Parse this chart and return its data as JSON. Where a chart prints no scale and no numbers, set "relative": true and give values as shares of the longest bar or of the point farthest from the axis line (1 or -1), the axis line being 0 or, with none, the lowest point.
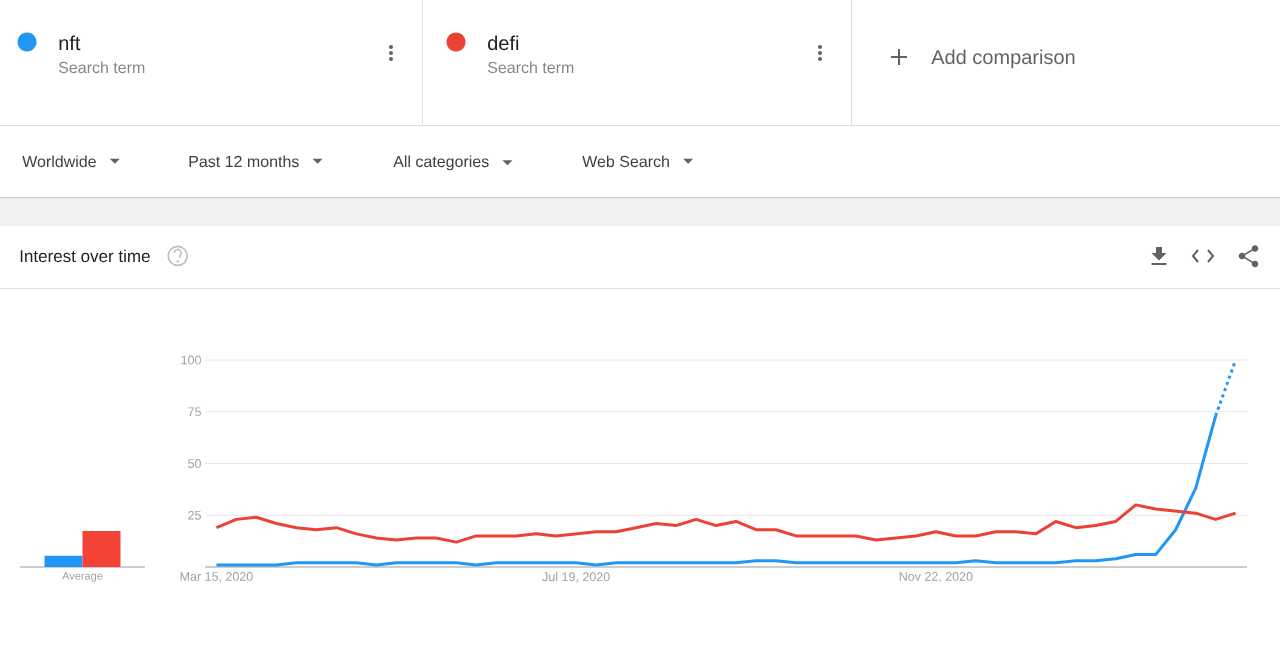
{
  "chart_data": [
    {
      "type": "bar",
      "categories": [
        "Average"
      ],
      "relative": true,
      "series": [
        {
          "color": "#2196f3",
          "values": [
            0.31
          ]
        },
        {
          "color": "#f44336",
          "values": [
            1
          ]
        }
      ]
    },
    {
      "type": "line",
      "title": "Interest over time",
      "x": [
        "2020-03-15",
        "2020-03-22",
        "2020-03-29",
        "2020-04-05",
        "2020-04-12",
        "2020-04-19",
        "2020-04-26",
        "2020-05-03",
        "2020-05-10",
        "2020-05-17",
        "2020-05-24",
        "2020-05-31",
        "2020-06-07",
        "2020-06-14",
        "2020-06-21",
        "2020-06-28",
        "2020-07-05",
        "2020-07-12",
        "2020-07-19",
        "2020-07-26",
        "2020-08-02",
        "2020-08-09",
        "2020-08-16",
        "2020-08-23",
        "2020-08-30",
        "2020-09-06",
        "2020-09-13",
        "2020-09-20",
        "2020-09-27",
        "2020-10-04",
        "2020-10-11",
        "2020-10-18",
        "2020-10-25",
        "2020-11-01",
        "2020-11-08",
        "2020-11-15",
        "2020-11-22",
        "2020-11-29",
        "2020-12-06",
        "2020-12-13",
        "2020-12-20",
        "2020-12-27",
        "2021-01-03",
        "2021-01-10",
        "2021-01-17",
        "2021-01-24",
        "2021-01-31",
        "2021-02-07",
        "2021-02-14",
        "2021-02-21",
        "2021-02-28",
        "2021-03-07"
      ],
      "xlim": [
        "2020-03-11",
        "2021-03-11"
      ],
      "xticks": [
        {
          "value": "2020-03-15",
          "label": "Mar 15, 2020"
        },
        {
          "value": "2020-07-19",
          "label": "Jul 19, 2020"
        },
        {
          "value": "2020-11-22",
          "label": "Nov 22, 2020"
        }
      ],
      "ylim": [
        0,
        100
      ],
      "yticks": [
        25,
        50,
        75,
        100
      ],
      "grid": "y",
      "legend": "top",
      "series": [
        {
          "name": "nft",
          "color": "#2196f3",
          "values": [
            1,
            1,
            1,
            1,
            2,
            2,
            2,
            2,
            1,
            2,
            2,
            2,
            2,
            1,
            2,
            2,
            2,
            2,
            2,
            1,
            2,
            2,
            2,
            2,
            2,
            2,
            2,
            3,
            3,
            2,
            2,
            2,
            2,
            2,
            2,
            2,
            2,
            2,
            3,
            2,
            2,
            2,
            2,
            3,
            3,
            4,
            6,
            6,
            18,
            38,
            73,
            null
          ]
        },
        {
          "name": "defi",
          "color": "#ea4335",
          "values": [
            19,
            23,
            24,
            21,
            19,
            18,
            19,
            16,
            14,
            13,
            14,
            14,
            12,
            15,
            15,
            15,
            16,
            15,
            16,
            17,
            17,
            19,
            21,
            20,
            23,
            20,
            22,
            18,
            18,
            15,
            15,
            15,
            15,
            13,
            14,
            15,
            17,
            15,
            15,
            17,
            17,
            16,
            22,
            19,
            20,
            22,
            30,
            28,
            27,
            26,
            23,
            26
          ]
        },
        {
          "color": "#2196f3",
          "x": [
            "2021-02-28",
            "2021-03-07"
          ],
          "values": [
            73,
            100
          ],
          "line_style": "dotted"
        }
      ],
      "annotations": [
        "Search term",
        "Search term",
        "Add comparison",
        "Worldwide",
        "Past 12 months",
        "All categories",
        "Web Search"
      ]
    }
  ]
}
